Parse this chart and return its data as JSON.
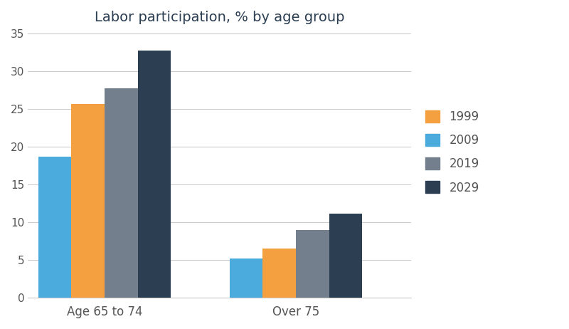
{
  "title": "Labor participation, % by age group",
  "categories": [
    "Age 65 to 74",
    "Over 75"
  ],
  "series": {
    "2009": [
      18.7,
      5.2
    ],
    "1999": [
      25.6,
      6.5
    ],
    "2019": [
      27.7,
      8.9
    ],
    "2029": [
      32.7,
      11.1
    ]
  },
  "bar_order": [
    "2009",
    "1999",
    "2019",
    "2029"
  ],
  "legend_order": [
    "1999",
    "2009",
    "2019",
    "2029"
  ],
  "colors": {
    "1999": "#F5A040",
    "2009": "#4AABDC",
    "2019": "#737F8C",
    "2029": "#2C3E52"
  },
  "ylim": [
    0,
    35
  ],
  "yticks": [
    0,
    5,
    10,
    15,
    20,
    25,
    30,
    35
  ],
  "background_color": "#ffffff",
  "title_color": "#2C3E52",
  "title_fontsize": 14,
  "tick_label_color": "#555555",
  "grid_color": "#cccccc",
  "bar_width": 0.13,
  "group_centers": [
    0.3,
    1.05
  ]
}
